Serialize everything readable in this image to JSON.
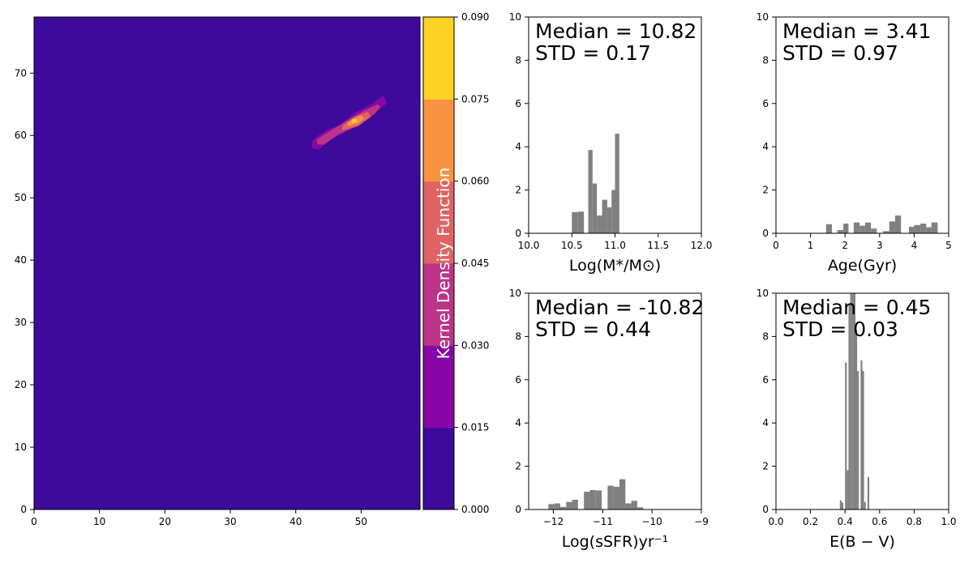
{
  "chart_data": [
    {
      "type": "heatmap",
      "xlim": [
        0,
        59
      ],
      "ylim": [
        0,
        79
      ],
      "xticks": [
        0,
        10,
        20,
        30,
        40,
        50
      ],
      "yticks": [
        0,
        10,
        20,
        30,
        40,
        50,
        60,
        70
      ],
      "background_color": "#3d0a9b",
      "levels": [
        0.0,
        0.015,
        0.03,
        0.045,
        0.06,
        0.075,
        0.09
      ],
      "level_colors": [
        "#3d0a9b",
        "#8707a6",
        "#bc3488",
        "#e06363",
        "#f89441",
        "#fcd225"
      ],
      "colorbar_label": "Kernel Density Function",
      "colorbar_ticks": [
        "0.000",
        "0.015",
        "0.030",
        "0.045",
        "0.060",
        "0.075",
        "0.090"
      ],
      "contours": [
        {
          "level": 0.015,
          "points": [
            [
              42.5,
              58.0
            ],
            [
              43.5,
              57.7
            ],
            [
              45.0,
              59.2
            ],
            [
              47.0,
              60.2
            ],
            [
              50.0,
              61.8
            ],
            [
              52.5,
              64.0
            ],
            [
              54.0,
              65.2
            ],
            [
              53.4,
              66.4
            ],
            [
              51.5,
              65.0
            ],
            [
              49.0,
              63.6
            ],
            [
              46.5,
              61.5
            ],
            [
              45.0,
              61.0
            ],
            [
              43.2,
              59.8
            ],
            [
              42.4,
              59.0
            ]
          ]
        },
        {
          "level": 0.03,
          "points": [
            [
              43.3,
              58.6
            ],
            [
              44.3,
              58.5
            ],
            [
              46.5,
              60.2
            ],
            [
              49.5,
              61.6
            ],
            [
              52.0,
              63.4
            ],
            [
              53.0,
              64.6
            ],
            [
              52.5,
              65.0
            ],
            [
              50.5,
              64.0
            ],
            [
              48.0,
              62.5
            ],
            [
              46.0,
              61.2
            ],
            [
              44.0,
              59.9
            ],
            [
              43.2,
              59.3
            ]
          ]
        },
        {
          "level": 0.045,
          "points": [
            [
              47.0,
              60.8
            ],
            [
              49.5,
              61.5
            ],
            [
              51.5,
              63.0
            ],
            [
              51.0,
              63.8
            ],
            [
              49.0,
              63.0
            ],
            [
              47.2,
              61.6
            ]
          ]
        },
        {
          "level": 0.06,
          "points": [
            [
              48.0,
              61.5
            ],
            [
              49.5,
              61.9
            ],
            [
              50.5,
              62.7
            ],
            [
              50.0,
              63.2
            ],
            [
              48.7,
              62.6
            ],
            [
              47.9,
              62.0
            ]
          ]
        },
        {
          "level": 0.075,
          "points": [
            [
              48.6,
              62.0
            ],
            [
              49.3,
              62.1
            ],
            [
              49.3,
              62.7
            ],
            [
              48.6,
              62.6
            ]
          ]
        }
      ]
    },
    {
      "type": "bar",
      "xlabel": "Log(M*/M⊙)",
      "xlim": [
        10.0,
        12.0
      ],
      "ylim": [
        0,
        10
      ],
      "xticks": [
        "10.0",
        "10.5",
        "11.0",
        "11.5",
        "12.0"
      ],
      "yticks": [
        "0",
        "2",
        "4",
        "6",
        "8",
        "10"
      ],
      "bar_color": "#808080",
      "annotation": [
        "Median = 10.82",
        "STD = 0.17"
      ],
      "bins": [
        [
          10.5,
          10.57,
          0.98
        ],
        [
          10.57,
          10.64,
          1.0
        ],
        [
          10.69,
          10.74,
          3.85
        ],
        [
          10.74,
          10.79,
          2.3
        ],
        [
          10.79,
          10.85,
          0.82
        ],
        [
          10.85,
          10.91,
          1.55
        ],
        [
          10.91,
          10.96,
          1.2
        ],
        [
          10.96,
          11.0,
          2.0
        ],
        [
          11.0,
          11.05,
          4.6
        ]
      ]
    },
    {
      "type": "bar",
      "xlabel": "Age(Gyr)",
      "xlim": [
        0,
        5
      ],
      "ylim": [
        0,
        10
      ],
      "xticks": [
        "0",
        "1",
        "2",
        "3",
        "4",
        "5"
      ],
      "yticks": [
        "0",
        "2",
        "4",
        "6",
        "8",
        "10"
      ],
      "bar_color": "#808080",
      "annotation": [
        "Median = 3.41",
        "STD = 0.97"
      ],
      "bins": [
        [
          1.45,
          1.62,
          0.42
        ],
        [
          1.78,
          1.95,
          0.15
        ],
        [
          1.95,
          2.1,
          0.45
        ],
        [
          2.25,
          2.42,
          0.5
        ],
        [
          2.42,
          2.58,
          0.35
        ],
        [
          2.58,
          2.75,
          0.5
        ],
        [
          2.75,
          2.92,
          0.22
        ],
        [
          3.1,
          3.28,
          0.1
        ],
        [
          3.28,
          3.45,
          0.55
        ],
        [
          3.45,
          3.62,
          0.82
        ],
        [
          3.85,
          4.0,
          0.3
        ],
        [
          4.0,
          4.18,
          0.38
        ],
        [
          4.18,
          4.35,
          0.45
        ],
        [
          4.35,
          4.5,
          0.28
        ],
        [
          4.5,
          4.68,
          0.5
        ]
      ]
    },
    {
      "type": "bar",
      "xlabel": "Log(sSFR)yr⁻¹",
      "xlim": [
        -12.5,
        -9
      ],
      "ylim": [
        0,
        10
      ],
      "xticks": [
        "−12",
        "−11",
        "−10",
        "−9"
      ],
      "xtick_values": [
        -12,
        -11,
        -10,
        -9
      ],
      "yticks": [
        "0",
        "2",
        "4",
        "6",
        "8",
        "10"
      ],
      "bar_color": "#808080",
      "annotation": [
        "Median = -10.82",
        "STD = 0.44"
      ],
      "bins": [
        [
          -12.1,
          -11.98,
          0.25
        ],
        [
          -11.98,
          -11.86,
          0.28
        ],
        [
          -11.86,
          -11.74,
          0.12
        ],
        [
          -11.74,
          -11.62,
          0.35
        ],
        [
          -11.62,
          -11.5,
          0.45
        ],
        [
          -11.38,
          -11.26,
          0.82
        ],
        [
          -11.26,
          -11.14,
          0.9
        ],
        [
          -11.14,
          -11.02,
          0.88
        ],
        [
          -10.9,
          -10.78,
          1.1
        ],
        [
          -10.78,
          -10.66,
          1.05
        ],
        [
          -10.66,
          -10.54,
          1.4
        ],
        [
          -10.54,
          -10.42,
          0.28
        ],
        [
          -10.42,
          -10.3,
          0.4
        ],
        [
          -10.3,
          -10.18,
          0.1
        ]
      ]
    },
    {
      "type": "bar",
      "xlabel": "E(B − V)",
      "xlim": [
        0.0,
        1.0
      ],
      "ylim": [
        0,
        10
      ],
      "xticks": [
        "0.0",
        "0.2",
        "0.4",
        "0.6",
        "0.8",
        "1.0"
      ],
      "yticks": [
        "0",
        "2",
        "4",
        "6",
        "8",
        "10"
      ],
      "bar_color": "#808080",
      "annotation": [
        "Median = 0.45",
        "STD = 0.03"
      ],
      "bins": [
        [
          0.37,
          0.38,
          0.42
        ],
        [
          0.38,
          0.39,
          0.32
        ],
        [
          0.4,
          0.41,
          6.8
        ],
        [
          0.41,
          0.42,
          1.82
        ],
        [
          0.42,
          0.43,
          9.5
        ],
        [
          0.43,
          0.44,
          10
        ],
        [
          0.44,
          0.45,
          10
        ],
        [
          0.45,
          0.46,
          10
        ],
        [
          0.46,
          0.47,
          8.3
        ],
        [
          0.47,
          0.48,
          6.4
        ],
        [
          0.49,
          0.5,
          6.9
        ],
        [
          0.5,
          0.51,
          6.4
        ],
        [
          0.51,
          0.52,
          0.35
        ],
        [
          0.53,
          0.54,
          1.5
        ]
      ]
    }
  ]
}
